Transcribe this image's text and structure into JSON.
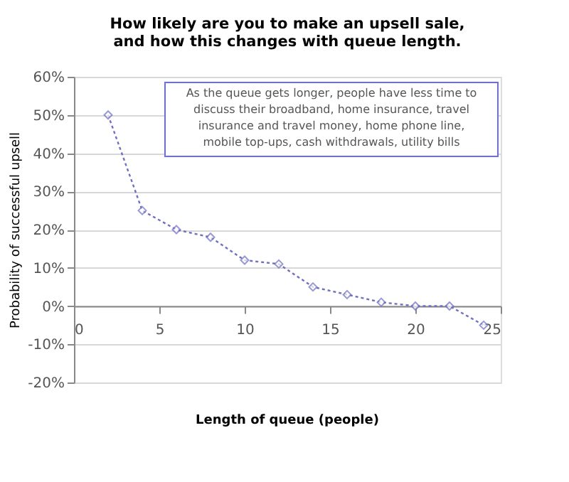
{
  "chart_data": {
    "type": "line",
    "title": [
      "How likely are you to make an upsell sale,",
      "and how this changes with queue length."
    ],
    "xlabel": "Length of queue (people)",
    "ylabel": "Probability of successful upsell",
    "x": [
      2,
      4,
      6,
      8,
      10,
      12,
      14,
      16,
      18,
      20,
      22,
      24
    ],
    "series": [
      {
        "color": "#7070c0",
        "values": [
          50,
          25,
          20,
          18,
          12,
          11,
          5,
          3,
          1,
          0,
          0,
          -5
        ]
      }
    ],
    "xlim": [
      0,
      25
    ],
    "xticks": [
      0,
      5,
      10,
      15,
      20,
      25
    ],
    "ylim": [
      -20,
      60
    ],
    "yticks": [
      {
        "value": -20,
        "label": "-20%"
      },
      {
        "value": -10,
        "label": "-10%"
      },
      {
        "value": 0,
        "label": "0%"
      },
      {
        "value": 10,
        "label": "10%"
      },
      {
        "value": 20,
        "label": "20%"
      },
      {
        "value": 30,
        "label": "30%"
      },
      {
        "value": 40,
        "label": "40%"
      },
      {
        "value": 50,
        "label": "50%"
      },
      {
        "value": 60,
        "label": "60%"
      }
    ],
    "grid": "y",
    "marker": "diamond",
    "line_style": "dotted",
    "annotations": [
      "As the queue gets longer, people have less time to discuss their broadband, home insurance, travel insurance and travel money, home phone line, mobile top-ups, cash withdrawals, utility bills"
    ]
  }
}
